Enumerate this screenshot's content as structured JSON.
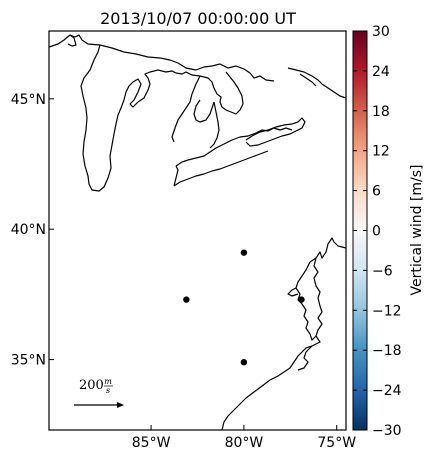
{
  "title": "2013/10/07 00:00:00 UT",
  "map": {
    "lon_range": [
      -90.5,
      -74.5
    ],
    "lat_range": [
      32.3,
      47.6
    ],
    "x_ticks": [
      {
        "lon": -85,
        "label": "85°W"
      },
      {
        "lon": -80,
        "label": "80°W"
      },
      {
        "lon": -75,
        "label": "75°W"
      }
    ],
    "y_ticks": [
      {
        "lat": 45,
        "label": "45°N"
      },
      {
        "lat": 40,
        "label": "40°N"
      },
      {
        "lat": 35,
        "label": "35°N"
      }
    ],
    "stations": [
      {
        "lon": -80.0,
        "lat": 39.1
      },
      {
        "lon": -83.1,
        "lat": 37.3
      },
      {
        "lon": -76.9,
        "lat": 37.3
      },
      {
        "lon": -80.0,
        "lat": 34.9
      }
    ],
    "scale_arrow": {
      "value": "200",
      "unit_num": "m",
      "unit_den": "s"
    }
  },
  "colorbar": {
    "label": "Vertical wind [m/s]",
    "colormap": "RdBu_r",
    "range": [
      -30,
      30
    ],
    "ticks": [
      "30",
      "24",
      "18",
      "12",
      "6",
      "0",
      "−6",
      "−12",
      "−18",
      "−24",
      "−30"
    ],
    "colors": [
      "#67001f",
      "#b2182b",
      "#d6604d",
      "#f4a582",
      "#fddbc7",
      "#f7f7f7",
      "#d1e5f0",
      "#92c5de",
      "#4393c3",
      "#2166ac",
      "#053061"
    ]
  }
}
